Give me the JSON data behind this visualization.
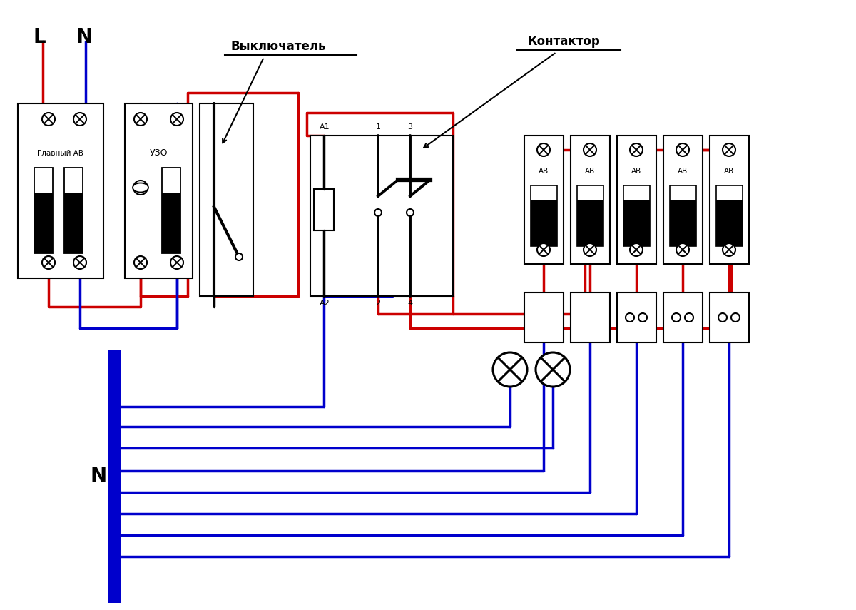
{
  "bg": "#ffffff",
  "red": "#cc0000",
  "blue": "#0000cc",
  "black": "#000000",
  "lw_wire": 2.5,
  "label_L": "L",
  "label_N": "N",
  "label_glavny": "Главный АВ",
  "label_uzo": "УЗО",
  "label_ab": "АВ",
  "label_vykl": "Выключатель",
  "label_kontaktor": "Контактор",
  "label_A1": "A1",
  "label_A2": "A2",
  "label_1": "1",
  "label_2": "2",
  "label_3": "3",
  "label_4": "4"
}
